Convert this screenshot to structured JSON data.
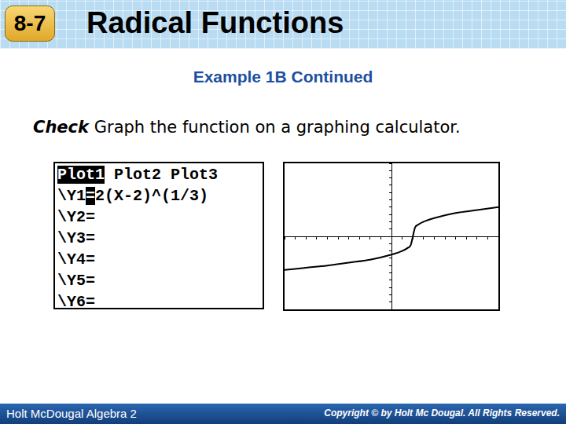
{
  "header": {
    "section": "8-7",
    "title": "Radical Functions"
  },
  "subtitle": "Example 1B Continued",
  "instruction": {
    "lead": "Check",
    "text": "Graph the function on a graphing calculator."
  },
  "calculator": {
    "tabs": [
      "Plot1",
      "Plot2",
      "Plot3"
    ],
    "entries": [
      {
        "label": "\\Y1",
        "sign": "=",
        "expression": "2(X-2)^(1/3)"
      },
      {
        "label": "\\Y2",
        "sign": "=",
        "expression": ""
      },
      {
        "label": "\\Y3",
        "sign": "=",
        "expression": ""
      },
      {
        "label": "\\Y4",
        "sign": "=",
        "expression": ""
      },
      {
        "label": "\\Y5",
        "sign": "=",
        "expression": ""
      },
      {
        "label": "\\Y6",
        "sign": "=",
        "expression": ""
      }
    ]
  },
  "chart_data": {
    "type": "line",
    "x": [
      -10,
      -8,
      -6,
      -4,
      -2,
      0,
      1,
      1.5,
      1.8,
      2,
      2.2,
      2.5,
      3,
      4,
      6,
      8,
      10
    ],
    "values": [
      -4.6,
      -4.3,
      -4.0,
      -3.6,
      -3.2,
      -2.5,
      -2.0,
      -1.6,
      -1.2,
      0,
      1.2,
      1.6,
      2.0,
      2.5,
      3.2,
      3.6,
      4.0
    ],
    "color": "#000000",
    "xlim": [
      -10,
      10
    ],
    "ylim": [
      -10,
      10
    ],
    "xticks": [
      -10,
      -9,
      -8,
      -7,
      -6,
      -5,
      -4,
      -3,
      -2,
      -1,
      0,
      1,
      2,
      3,
      4,
      5,
      6,
      7,
      8,
      9,
      10
    ],
    "yticks": [
      -10,
      -9,
      -8,
      -7,
      -6,
      -5,
      -4,
      -3,
      -2,
      -1,
      0,
      1,
      2,
      3,
      4,
      5,
      6,
      7,
      8,
      9,
      10
    ],
    "grid": false,
    "tick_labels": false
  },
  "footer": {
    "left": "Holt McDougal Algebra 2",
    "right": "Copyright © by Holt Mc Dougal. All Rights Reserved."
  }
}
